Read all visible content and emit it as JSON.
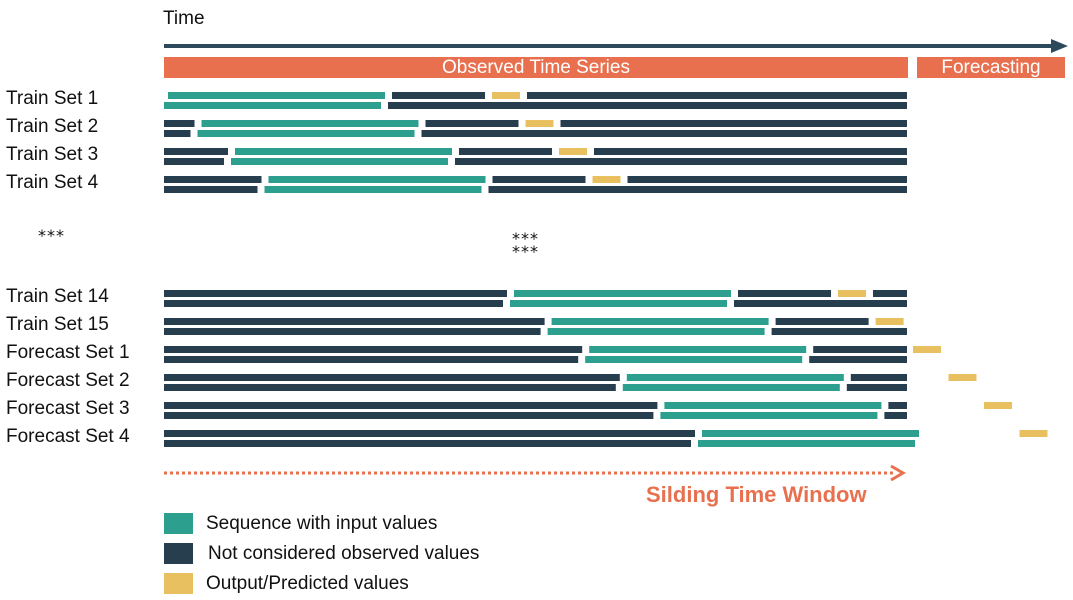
{
  "time_label": "Time",
  "headers": {
    "observed": "Observed Time Series",
    "forecasting": "Forecasting"
  },
  "colors": {
    "input": "#2d9f8e",
    "not_considered": "#263e4d",
    "output": "#e8c060",
    "accent": "#e8704f",
    "arrow": "#2d4a5c"
  },
  "rows": [
    {
      "label": "Train Set 1",
      "input_start": 0,
      "window_step": 0
    },
    {
      "label": "Train Set 2",
      "input_start": 1,
      "window_step": 1
    },
    {
      "label": "Train Set 3",
      "input_start": 2,
      "window_step": 2
    },
    {
      "label": "Train Set 4",
      "input_start": 3,
      "window_step": 3
    },
    {
      "label": "Train Set 14",
      "input_start": 13,
      "window_step": 13
    },
    {
      "label": "Train Set 15",
      "input_start": 14,
      "window_step": 14
    },
    {
      "label": "Forecast Set 1",
      "input_start": 15,
      "window_step": 15
    },
    {
      "label": "Forecast Set 2",
      "input_start": 16,
      "window_step": 16
    },
    {
      "label": "Forecast Set 3",
      "input_start": 17,
      "window_step": 17
    },
    {
      "label": "Forecast Set 4",
      "input_start": 18,
      "window_step": 18
    }
  ],
  "ellipsis": "***",
  "window_label": "Silding Time Window",
  "legend": [
    {
      "label": "Sequence with input values",
      "color_key": "input"
    },
    {
      "label": "Not considered observed values",
      "color_key": "not_considered"
    },
    {
      "label": "Output/Predicted values",
      "color_key": "output"
    }
  ]
}
